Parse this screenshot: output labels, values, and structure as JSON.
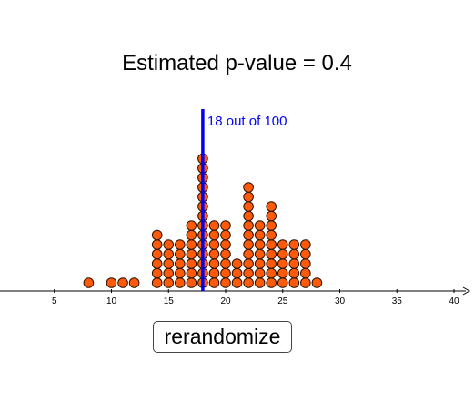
{
  "title": "Estimated p-value = 0.4",
  "annotation": "18 out of 100",
  "button_label": "rerandomize",
  "colors": {
    "dot_fill": "#ff5a0a",
    "dot_stroke": "#2b1200",
    "line": "#0000ff",
    "annotation": "#0000ff",
    "axis": "#000000"
  },
  "chart_data": {
    "type": "scatter",
    "title": "Estimated p-value = 0.4",
    "xlabel": "",
    "ylabel": "",
    "xlim": [
      0,
      40
    ],
    "x_ticks": [
      5,
      10,
      15,
      20,
      25,
      30,
      35,
      40
    ],
    "marker_line_x": 18,
    "counts": [
      {
        "x": 8,
        "n": 1
      },
      {
        "x": 10,
        "n": 1
      },
      {
        "x": 11,
        "n": 1
      },
      {
        "x": 12,
        "n": 1
      },
      {
        "x": 14,
        "n": 6
      },
      {
        "x": 15,
        "n": 5
      },
      {
        "x": 16,
        "n": 5
      },
      {
        "x": 17,
        "n": 7
      },
      {
        "x": 18,
        "n": 14
      },
      {
        "x": 19,
        "n": 7
      },
      {
        "x": 20,
        "n": 7
      },
      {
        "x": 21,
        "n": 3
      },
      {
        "x": 22,
        "n": 11
      },
      {
        "x": 23,
        "n": 7
      },
      {
        "x": 24,
        "n": 9
      },
      {
        "x": 25,
        "n": 5
      },
      {
        "x": 26,
        "n": 5
      },
      {
        "x": 27,
        "n": 5
      },
      {
        "x": 28,
        "n": 1
      }
    ]
  }
}
